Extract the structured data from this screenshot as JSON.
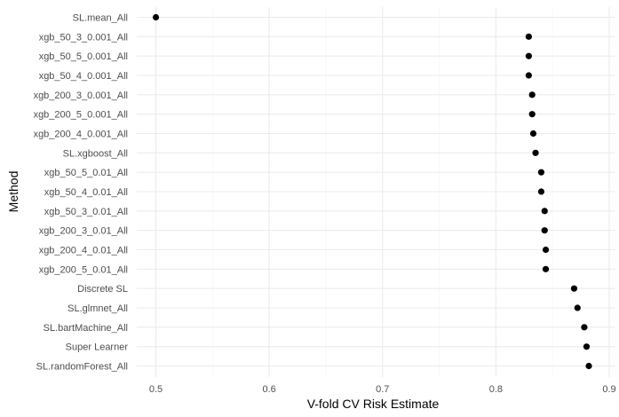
{
  "chart_data": {
    "type": "scatter",
    "title": "",
    "xlabel": "V-fold CV Risk Estimate",
    "ylabel": "Method",
    "xlim": [
      0.48,
      0.9
    ],
    "xticks": [
      0.5,
      0.6,
      0.7,
      0.8,
      0.9
    ],
    "xtick_labels": [
      "0.5",
      "0.6",
      "0.7",
      "0.8",
      "0.9"
    ],
    "grid": true,
    "legend": "none",
    "point_color": "#000000",
    "categories": [
      "SL.mean_All",
      "xgb_50_3_0.001_All",
      "xgb_50_5_0.001_All",
      "xgb_50_4_0.001_All",
      "xgb_200_3_0.001_All",
      "xgb_200_5_0.001_All",
      "xgb_200_4_0.001_All",
      "SL.xgboost_All",
      "xgb_50_5_0.01_All",
      "xgb_50_4_0.01_All",
      "xgb_50_3_0.01_All",
      "xgb_200_3_0.01_All",
      "xgb_200_4_0.01_All",
      "xgb_200_5_0.01_All",
      "Discrete SL",
      "SL.glmnet_All",
      "SL.bartMachine_All",
      "Super Learner",
      "SL.randomForest_All"
    ],
    "values": [
      0.5,
      0.829,
      0.829,
      0.829,
      0.832,
      0.832,
      0.833,
      0.835,
      0.84,
      0.84,
      0.843,
      0.843,
      0.844,
      0.844,
      0.869,
      0.872,
      0.878,
      0.88,
      0.882
    ]
  }
}
